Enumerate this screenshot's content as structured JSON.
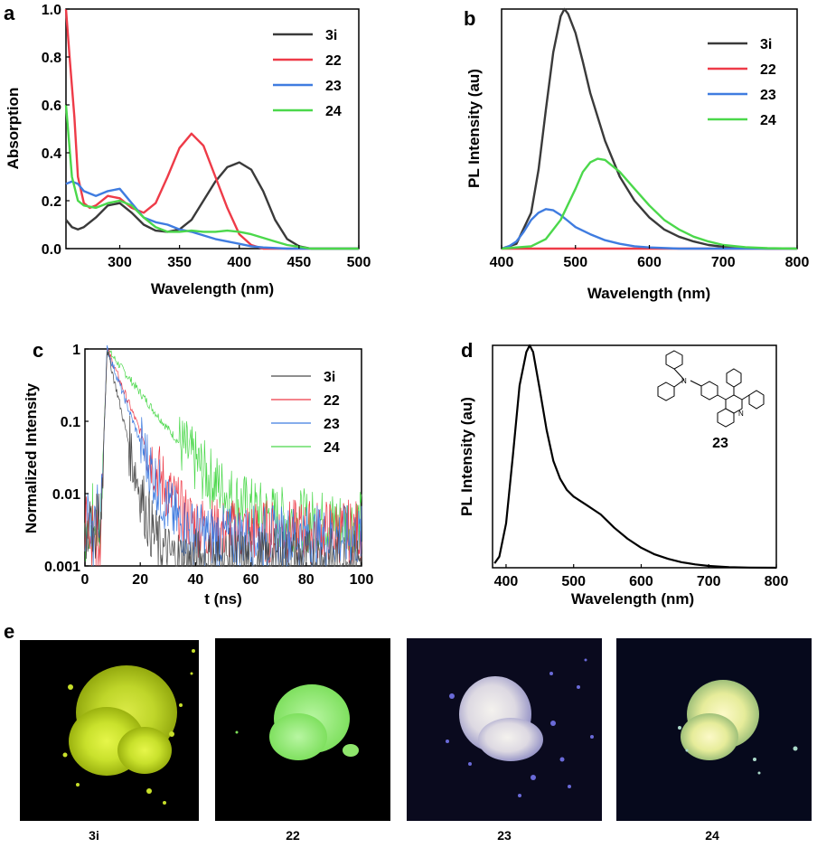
{
  "panels": {
    "a": "a",
    "b": "b",
    "c": "c",
    "d": "d",
    "e": "e"
  },
  "colors": {
    "3i": "#3a3a3a",
    "22": "#ee3b48",
    "23": "#3f7ce0",
    "24": "#4bd84b",
    "c3i": "#4a4a4a",
    "black": "#000000"
  },
  "chart_data": [
    {
      "id": "a",
      "type": "line",
      "title": "",
      "xlabel": "Wavelength (nm)",
      "ylabel": "Absorption",
      "xlim": [
        255,
        500
      ],
      "ylim": [
        0,
        1.0
      ],
      "xticks": [
        "300",
        "350",
        "400",
        "450",
        "500"
      ],
      "yticks": [
        "0.0",
        "0.2",
        "0.4",
        "0.6",
        "0.8",
        "1.0"
      ],
      "legend": [
        "3i",
        "22",
        "23",
        "24"
      ],
      "legend_position": "top-right",
      "series": [
        {
          "name": "3i",
          "x": [
            255,
            260,
            265,
            270,
            280,
            290,
            300,
            310,
            320,
            330,
            340,
            350,
            360,
            370,
            380,
            390,
            400,
            410,
            420,
            430,
            440,
            450,
            460,
            480,
            500
          ],
          "y": [
            0.12,
            0.09,
            0.08,
            0.09,
            0.13,
            0.18,
            0.19,
            0.15,
            0.1,
            0.075,
            0.07,
            0.08,
            0.12,
            0.2,
            0.28,
            0.34,
            0.36,
            0.33,
            0.24,
            0.12,
            0.04,
            0.01,
            0.0,
            0.0,
            0.0
          ]
        },
        {
          "name": "22",
          "x": [
            255,
            258,
            262,
            265,
            270,
            275,
            280,
            290,
            300,
            310,
            320,
            330,
            340,
            350,
            360,
            370,
            380,
            390,
            400,
            410,
            420,
            430,
            440,
            460,
            500
          ],
          "y": [
            1.0,
            0.8,
            0.55,
            0.3,
            0.19,
            0.17,
            0.18,
            0.22,
            0.21,
            0.17,
            0.15,
            0.19,
            0.3,
            0.42,
            0.48,
            0.43,
            0.3,
            0.17,
            0.06,
            0.015,
            0.0,
            0.0,
            0.0,
            0.0,
            0.0
          ]
        },
        {
          "name": "23",
          "x": [
            255,
            260,
            265,
            270,
            280,
            290,
            300,
            310,
            320,
            330,
            340,
            350,
            360,
            370,
            380,
            390,
            400,
            410,
            420,
            440,
            460,
            500
          ],
          "y": [
            0.27,
            0.28,
            0.27,
            0.24,
            0.22,
            0.24,
            0.25,
            0.19,
            0.13,
            0.11,
            0.1,
            0.08,
            0.07,
            0.055,
            0.04,
            0.03,
            0.02,
            0.01,
            0.005,
            0.0,
            0.0,
            0.0
          ]
        },
        {
          "name": "24",
          "x": [
            255,
            260,
            265,
            270,
            280,
            290,
            300,
            310,
            320,
            330,
            340,
            350,
            360,
            370,
            380,
            390,
            400,
            410,
            420,
            430,
            440,
            460,
            500
          ],
          "y": [
            0.6,
            0.3,
            0.2,
            0.18,
            0.17,
            0.19,
            0.2,
            0.18,
            0.13,
            0.09,
            0.07,
            0.07,
            0.075,
            0.07,
            0.07,
            0.075,
            0.07,
            0.06,
            0.045,
            0.03,
            0.015,
            0.0,
            0.0
          ]
        }
      ]
    },
    {
      "id": "b",
      "type": "line",
      "title": "",
      "xlabel": "Wavelength (nm)",
      "ylabel": "PL Intensity (au)",
      "xlim": [
        400,
        800
      ],
      "ylim": [
        0,
        1.0
      ],
      "xticks": [
        "400",
        "500",
        "600",
        "700",
        "800"
      ],
      "yticks": [],
      "legend": [
        "3i",
        "22",
        "23",
        "24"
      ],
      "legend_position": "top-right",
      "series": [
        {
          "name": "3i",
          "x": [
            400,
            420,
            440,
            450,
            460,
            470,
            480,
            485,
            490,
            500,
            510,
            520,
            540,
            560,
            580,
            600,
            620,
            640,
            660,
            680,
            700,
            730,
            760,
            800
          ],
          "y": [
            0.0,
            0.02,
            0.15,
            0.33,
            0.58,
            0.82,
            0.97,
            1.0,
            0.98,
            0.9,
            0.78,
            0.65,
            0.45,
            0.3,
            0.2,
            0.13,
            0.08,
            0.05,
            0.03,
            0.015,
            0.008,
            0.003,
            0.0,
            0.0
          ]
        },
        {
          "name": "22",
          "x": [
            400,
            800
          ],
          "y": [
            0.0,
            0.0
          ]
        },
        {
          "name": "23",
          "x": [
            400,
            410,
            420,
            430,
            440,
            450,
            460,
            470,
            480,
            490,
            500,
            520,
            540,
            560,
            580,
            600,
            640,
            700,
            800
          ],
          "y": [
            0.0,
            0.01,
            0.03,
            0.07,
            0.12,
            0.15,
            0.165,
            0.16,
            0.14,
            0.115,
            0.09,
            0.06,
            0.035,
            0.02,
            0.01,
            0.005,
            0.0,
            0.0,
            0.0
          ]
        },
        {
          "name": "24",
          "x": [
            400,
            440,
            460,
            480,
            500,
            510,
            520,
            530,
            540,
            560,
            580,
            600,
            620,
            640,
            660,
            680,
            700,
            730,
            760,
            800
          ],
          "y": [
            0.0,
            0.01,
            0.04,
            0.12,
            0.25,
            0.32,
            0.36,
            0.375,
            0.37,
            0.32,
            0.25,
            0.18,
            0.12,
            0.08,
            0.05,
            0.03,
            0.015,
            0.006,
            0.002,
            0.0
          ]
        }
      ]
    },
    {
      "id": "c",
      "type": "line",
      "title": "",
      "xlabel": "t (ns)",
      "ylabel": "Normalized Intensity",
      "xscale": "linear",
      "yscale": "log",
      "xlim": [
        0,
        100
      ],
      "ylim": [
        0.001,
        1
      ],
      "xticks": [
        "0",
        "20",
        "40",
        "60",
        "80",
        "100"
      ],
      "yticks": [
        "0.001",
        "0.01",
        "0.1",
        "1"
      ],
      "legend": [
        "3i",
        "22",
        "23",
        "24"
      ],
      "legend_position": "top-right",
      "series": [
        {
          "name": "3i",
          "peak_ns": 8,
          "tau_ns": 2.6,
          "floor": 0.0012
        },
        {
          "name": "22",
          "peak_ns": 8,
          "tau_ns": 4.5,
          "floor": 0.003
        },
        {
          "name": "23",
          "peak_ns": 8,
          "tau_ns": 4.0,
          "floor": 0.0025
        },
        {
          "name": "24",
          "peak_ns": 8,
          "tau_ns": 8.5,
          "floor": 0.004
        }
      ]
    },
    {
      "id": "d",
      "type": "line",
      "title": "",
      "xlabel": "Wavelength (nm)",
      "ylabel": "PL Intensity (au)",
      "xlim": [
        380,
        800
      ],
      "ylim": [
        0,
        1.0
      ],
      "xticks": [
        "400",
        "500",
        "600",
        "700",
        "800"
      ],
      "yticks": [],
      "annotation": "23",
      "series": [
        {
          "name": "23",
          "x": [
            383,
            390,
            400,
            410,
            420,
            430,
            435,
            440,
            450,
            460,
            470,
            480,
            490,
            500,
            510,
            520,
            530,
            540,
            550,
            560,
            580,
            600,
            620,
            640,
            660,
            680,
            700,
            730,
            760,
            800
          ],
          "y": [
            0.02,
            0.05,
            0.2,
            0.5,
            0.82,
            0.97,
            1.0,
            0.97,
            0.8,
            0.62,
            0.48,
            0.4,
            0.35,
            0.32,
            0.3,
            0.28,
            0.26,
            0.24,
            0.21,
            0.18,
            0.13,
            0.09,
            0.06,
            0.04,
            0.025,
            0.015,
            0.008,
            0.003,
            0.001,
            0.0
          ]
        }
      ]
    }
  ],
  "photos": {
    "captions": [
      "3i",
      "22",
      "23",
      "24"
    ]
  }
}
